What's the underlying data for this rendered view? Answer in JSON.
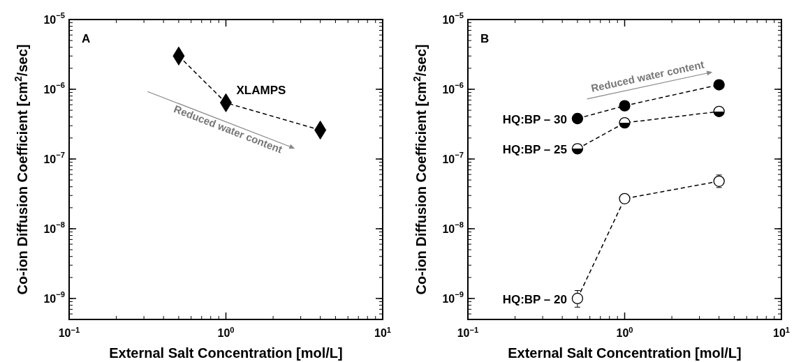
{
  "chart_data": [
    {
      "type": "line",
      "xlabel": "External Salt Concentration [mol/L]",
      "ylabel": "Co-ion Diffusion Coefficient [cm$^{2}$/sec]",
      "log": "xy",
      "marker": "diamond",
      "line_style": "dashed",
      "grid": false,
      "legend": false,
      "xlim": [
        0.1,
        10
      ],
      "xticks": [
        {
          "value": 0.1,
          "label": "10$^{−1}$"
        },
        {
          "value": 1,
          "label": "10$^{0}$"
        },
        {
          "value": 10,
          "label": "10$^{1}$"
        }
      ],
      "ylim": [
        5e-10,
        1e-05
      ],
      "yticks": [
        {
          "value": 1e-09,
          "label": "10$^{−9}$"
        },
        {
          "value": 1e-08,
          "label": "10$^{−8}$"
        },
        {
          "value": 1e-07,
          "label": "10$^{−7}$"
        },
        {
          "value": 1e-06,
          "label": "10$^{−6}$"
        },
        {
          "value": 1e-05,
          "label": "10$^{−5}$"
        }
      ],
      "x": [
        0.5,
        1,
        4
      ],
      "series": [
        {
          "name": "XLAMPS",
          "color": "#000000",
          "values": [
            3e-06,
            6.4e-07,
            2.6e-07
          ]
        }
      ],
      "annotations": [
        "A",
        "Reduced water content"
      ]
    },
    {
      "type": "line",
      "xlabel": "External Salt Concentration [mol/L]",
      "ylabel": "Co-ion Diffusion Coefficient [cm$^{2}$/sec]",
      "log": "xy",
      "marker": "circle",
      "line_style": "dashed",
      "grid": false,
      "legend": "left",
      "xlim": [
        0.1,
        10
      ],
      "xticks": [
        {
          "value": 0.1,
          "label": "10$^{−1}$"
        },
        {
          "value": 1,
          "label": "10$^{0}$"
        },
        {
          "value": 10,
          "label": "10$^{1}$"
        }
      ],
      "ylim": [
        5e-10,
        1e-05
      ],
      "yticks": [
        {
          "value": 1e-09,
          "label": "10$^{−9}$"
        },
        {
          "value": 1e-08,
          "label": "10$^{−8}$"
        },
        {
          "value": 1e-07,
          "label": "10$^{−7}$"
        },
        {
          "value": 1e-06,
          "label": "10$^{−6}$"
        },
        {
          "value": 1e-05,
          "label": "10$^{−5}$"
        }
      ],
      "x": [
        0.5,
        1,
        4
      ],
      "series": [
        {
          "name": "HQ:BP – 30",
          "color": "#000000",
          "values": [
            3.8e-07,
            5.8e-07,
            1.16e-06
          ]
        },
        {
          "name": "HQ:BP – 25",
          "color": "#000000",
          "values": [
            1.4e-07,
            3.3e-07,
            4.8e-07
          ]
        },
        {
          "name": "HQ:BP – 20",
          "color": "#ffffff",
          "values": [
            1e-09,
            2.7e-08,
            4.8e-08
          ],
          "errors": [
            [
              7.5e-10,
              1.3e-09
            ],
            null,
            [
              3.9e-08,
              5.9e-08
            ]
          ]
        }
      ],
      "annotations": [
        "B",
        "Reduced water content"
      ]
    }
  ]
}
